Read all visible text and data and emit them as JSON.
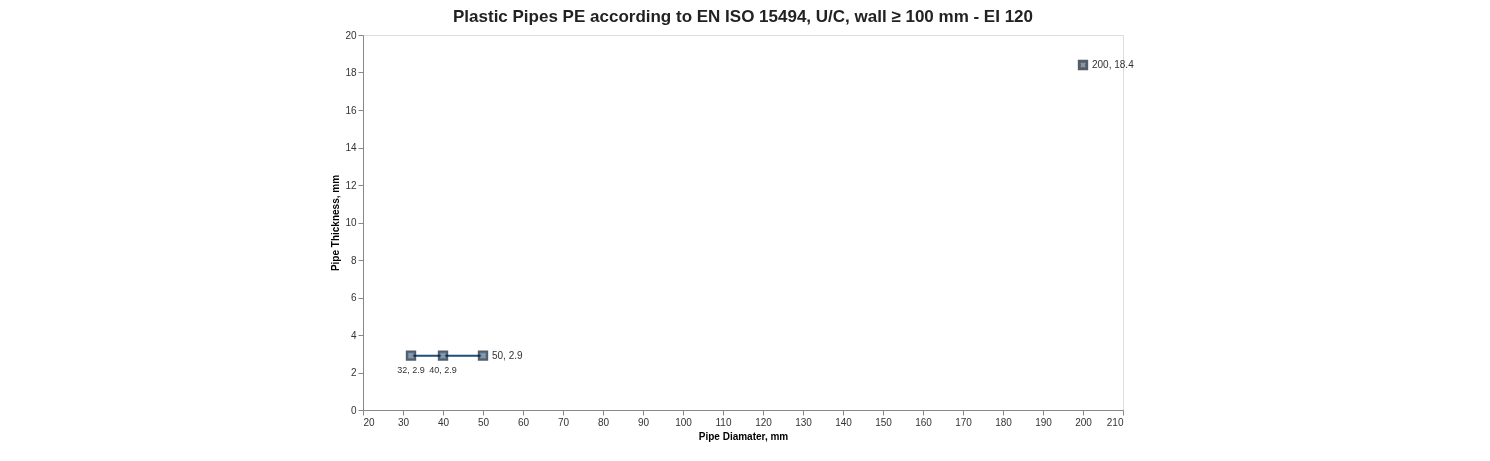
{
  "chart_data": {
    "type": "scatter",
    "title": "Plastic Pipes PE according to EN ISO 15494, U/C, wall ≥ 100 mm - EI 120",
    "xlabel": "Pipe Diamater, mm",
    "ylabel": "Pipe Thickness, mm",
    "xlim": [
      20,
      210
    ],
    "xticks": [
      20,
      30,
      40,
      50,
      60,
      70,
      80,
      90,
      100,
      110,
      120,
      130,
      140,
      150,
      160,
      170,
      180,
      190,
      200,
      210
    ],
    "ylim": [
      0,
      20
    ],
    "yticks": [
      0,
      2,
      4,
      6,
      8,
      10,
      12,
      14,
      16,
      18,
      20
    ],
    "grid": false,
    "marker": "square",
    "series": [
      {
        "type": "line",
        "x": [
          32,
          40,
          50
        ],
        "values": [
          2.9,
          2.9,
          2.9
        ],
        "color": "#1f4e79",
        "value_labels": [
          "32, 2.9",
          "40, 2.9",
          "50, 2.9"
        ]
      },
      {
        "type": "scatter",
        "x": [
          200
        ],
        "values": [
          18.4
        ],
        "color": "#0d1b2a",
        "value_labels": [
          "200, 18.4"
        ]
      }
    ]
  }
}
